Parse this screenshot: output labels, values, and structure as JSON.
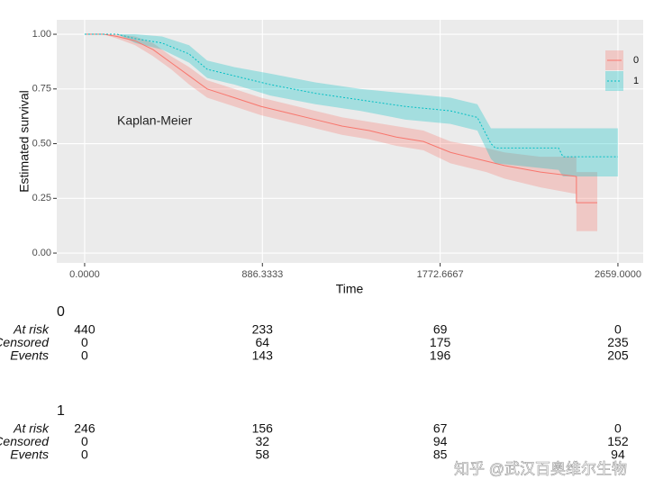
{
  "chart_data": {
    "type": "survival",
    "annotation": "Kaplan-Meier",
    "x_label": "Time",
    "y_label": "Estimated survival",
    "xlim": [
      -139,
      2785
    ],
    "ylim": [
      -0.045,
      1.066
    ],
    "xticks": [
      {
        "value": 0,
        "label": "0.0000"
      },
      {
        "value": 886.3333,
        "label": "886.3333"
      },
      {
        "value": 1772.6667,
        "label": "1772.6667"
      },
      {
        "value": 2659,
        "label": "2659.0000"
      }
    ],
    "yticks": [
      {
        "value": 0,
        "label": "0.00"
      },
      {
        "value": 0.25,
        "label": "0.25"
      },
      {
        "value": 0.5,
        "label": "0.50"
      },
      {
        "value": 0.75,
        "label": "0.75"
      },
      {
        "value": 1,
        "label": "1.00"
      }
    ],
    "grid": true,
    "legend": "right",
    "series": [
      {
        "name": "0",
        "color": "#F8766D",
        "dash": false,
        "x": [
          0,
          94,
          162,
          252,
          341,
          431,
          521,
          611,
          746,
          880,
          1015,
          1150,
          1285,
          1419,
          1554,
          1689,
          1824,
          2003,
          2093,
          2273,
          2452,
          2452,
          2556
        ],
        "values": [
          1.0,
          1.0,
          0.99,
          0.97,
          0.93,
          0.87,
          0.81,
          0.75,
          0.71,
          0.67,
          0.64,
          0.61,
          0.58,
          0.56,
          0.53,
          0.51,
          0.46,
          0.42,
          0.4,
          0.37,
          0.35,
          0.23,
          0.23
        ],
        "upper": [
          1.0,
          1.0,
          1.0,
          0.99,
          0.96,
          0.9,
          0.85,
          0.79,
          0.75,
          0.71,
          0.68,
          0.65,
          0.62,
          0.6,
          0.58,
          0.56,
          0.51,
          0.48,
          0.46,
          0.44,
          0.44,
          0.37,
          0.37
        ],
        "lower": [
          1.0,
          1.0,
          0.98,
          0.95,
          0.9,
          0.84,
          0.77,
          0.71,
          0.67,
          0.63,
          0.6,
          0.57,
          0.54,
          0.52,
          0.49,
          0.47,
          0.41,
          0.37,
          0.34,
          0.3,
          0.27,
          0.1,
          0.1
        ]
      },
      {
        "name": "1",
        "color": "#00BFC4",
        "dash": true,
        "x": [
          0,
          162,
          252,
          386,
          521,
          611,
          746,
          925,
          1150,
          1374,
          1599,
          1824,
          1958,
          2026,
          2048,
          2363,
          2385,
          2659
        ],
        "values": [
          1.0,
          1.0,
          0.98,
          0.96,
          0.91,
          0.84,
          0.81,
          0.77,
          0.73,
          0.7,
          0.67,
          0.65,
          0.62,
          0.5,
          0.48,
          0.48,
          0.44,
          0.44
        ],
        "upper": [
          1.0,
          1.0,
          1.0,
          0.99,
          0.95,
          0.88,
          0.85,
          0.82,
          0.78,
          0.75,
          0.73,
          0.71,
          0.68,
          0.57,
          0.57,
          0.57,
          0.57,
          0.57
        ],
        "lower": [
          1.0,
          1.0,
          0.96,
          0.93,
          0.87,
          0.8,
          0.77,
          0.72,
          0.68,
          0.65,
          0.61,
          0.59,
          0.56,
          0.43,
          0.41,
          0.38,
          0.35,
          0.35
        ]
      }
    ],
    "risk_table": {
      "row_labels": [
        "At risk",
        "Censored",
        "Events"
      ],
      "groups": [
        {
          "name": "0",
          "rows": [
            [
              440,
              233,
              69,
              0
            ],
            [
              0,
              64,
              175,
              235
            ],
            [
              0,
              143,
              196,
              205
            ]
          ]
        },
        {
          "name": "1",
          "rows": [
            [
              246,
              156,
              67,
              0
            ],
            [
              0,
              32,
              94,
              152
            ],
            [
              0,
              58,
              85,
              94
            ]
          ]
        }
      ]
    }
  },
  "watermark": "知乎 @武汉百奥维尔生物"
}
